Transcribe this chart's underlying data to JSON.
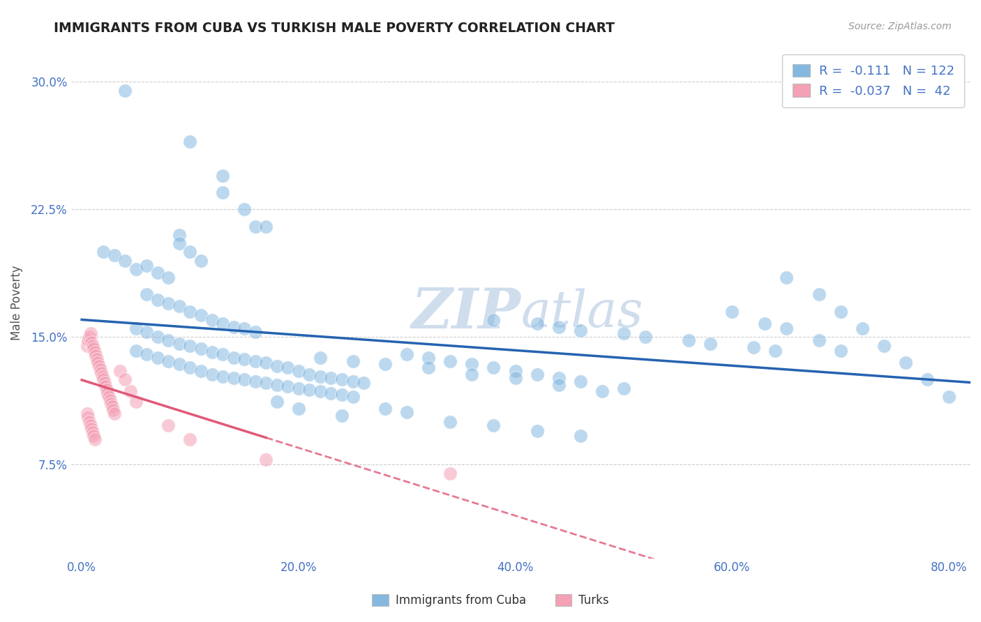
{
  "title": "IMMIGRANTS FROM CUBA VS TURKISH MALE POVERTY CORRELATION CHART",
  "source": "Source: ZipAtlas.com",
  "ylabel": "Male Poverty",
  "x_tick_labels": [
    "0.0%",
    "20.0%",
    "40.0%",
    "60.0%",
    "80.0%"
  ],
  "x_tick_values": [
    0.0,
    0.2,
    0.4,
    0.6,
    0.8
  ],
  "y_tick_labels": [
    "7.5%",
    "15.0%",
    "22.5%",
    "30.0%"
  ],
  "y_tick_values": [
    0.075,
    0.15,
    0.225,
    0.3
  ],
  "xlim": [
    -0.01,
    0.82
  ],
  "ylim": [
    0.02,
    0.32
  ],
  "legend_labels": [
    "Immigrants from Cuba",
    "Turks"
  ],
  "blue_R": "-0.111",
  "blue_N": "122",
  "pink_R": "-0.037",
  "pink_N": "42",
  "blue_dot_color": "#85b8e0",
  "pink_dot_color": "#f4a0b5",
  "blue_line_color": "#2563b0",
  "pink_line_color": "#e05878",
  "watermark_color": "#cfdded",
  "background_color": "#ffffff",
  "title_color": "#222222",
  "axis_color": "#4472c4",
  "blue_scatter_x": [
    0.04,
    0.1,
    0.13,
    0.13,
    0.15,
    0.16,
    0.17,
    0.02,
    0.03,
    0.04,
    0.05,
    0.06,
    0.07,
    0.08,
    0.09,
    0.09,
    0.1,
    0.11,
    0.06,
    0.07,
    0.08,
    0.09,
    0.1,
    0.11,
    0.12,
    0.13,
    0.14,
    0.15,
    0.16,
    0.05,
    0.06,
    0.07,
    0.08,
    0.09,
    0.1,
    0.11,
    0.12,
    0.13,
    0.14,
    0.15,
    0.16,
    0.17,
    0.18,
    0.19,
    0.2,
    0.21,
    0.22,
    0.23,
    0.24,
    0.25,
    0.26,
    0.05,
    0.06,
    0.07,
    0.08,
    0.09,
    0.1,
    0.11,
    0.12,
    0.13,
    0.14,
    0.15,
    0.16,
    0.17,
    0.18,
    0.19,
    0.2,
    0.21,
    0.22,
    0.23,
    0.24,
    0.25,
    0.3,
    0.32,
    0.34,
    0.36,
    0.38,
    0.4,
    0.42,
    0.44,
    0.46,
    0.5,
    0.38,
    0.42,
    0.44,
    0.46,
    0.5,
    0.52,
    0.56,
    0.58,
    0.62,
    0.64,
    0.65,
    0.68,
    0.7,
    0.72,
    0.74,
    0.76,
    0.78,
    0.8,
    0.6,
    0.63,
    0.65,
    0.68,
    0.7,
    0.28,
    0.3,
    0.34,
    0.38,
    0.42,
    0.46,
    0.22,
    0.25,
    0.28,
    0.32,
    0.36,
    0.4,
    0.44,
    0.48,
    0.18,
    0.2,
    0.24
  ],
  "blue_scatter_y": [
    0.295,
    0.265,
    0.245,
    0.235,
    0.225,
    0.215,
    0.215,
    0.2,
    0.198,
    0.195,
    0.19,
    0.192,
    0.188,
    0.185,
    0.21,
    0.205,
    0.2,
    0.195,
    0.175,
    0.172,
    0.17,
    0.168,
    0.165,
    0.163,
    0.16,
    0.158,
    0.156,
    0.155,
    0.153,
    0.155,
    0.153,
    0.15,
    0.148,
    0.146,
    0.145,
    0.143,
    0.141,
    0.14,
    0.138,
    0.137,
    0.136,
    0.135,
    0.133,
    0.132,
    0.13,
    0.128,
    0.127,
    0.126,
    0.125,
    0.124,
    0.123,
    0.142,
    0.14,
    0.138,
    0.136,
    0.134,
    0.132,
    0.13,
    0.128,
    0.127,
    0.126,
    0.125,
    0.124,
    0.123,
    0.122,
    0.121,
    0.12,
    0.119,
    0.118,
    0.117,
    0.116,
    0.115,
    0.14,
    0.138,
    0.136,
    0.134,
    0.132,
    0.13,
    0.128,
    0.126,
    0.124,
    0.12,
    0.16,
    0.158,
    0.156,
    0.154,
    0.152,
    0.15,
    0.148,
    0.146,
    0.144,
    0.142,
    0.185,
    0.175,
    0.165,
    0.155,
    0.145,
    0.135,
    0.125,
    0.115,
    0.165,
    0.158,
    0.155,
    0.148,
    0.142,
    0.108,
    0.106,
    0.1,
    0.098,
    0.095,
    0.092,
    0.138,
    0.136,
    0.134,
    0.132,
    0.128,
    0.126,
    0.122,
    0.118,
    0.112,
    0.108,
    0.104
  ],
  "pink_scatter_x": [
    0.005,
    0.006,
    0.007,
    0.008,
    0.009,
    0.01,
    0.011,
    0.012,
    0.013,
    0.014,
    0.015,
    0.016,
    0.017,
    0.018,
    0.019,
    0.02,
    0.021,
    0.022,
    0.023,
    0.024,
    0.025,
    0.026,
    0.027,
    0.028,
    0.029,
    0.03,
    0.005,
    0.006,
    0.007,
    0.008,
    0.009,
    0.01,
    0.011,
    0.012,
    0.035,
    0.04,
    0.045,
    0.05,
    0.08,
    0.1,
    0.17,
    0.34
  ],
  "pink_scatter_y": [
    0.145,
    0.148,
    0.15,
    0.152,
    0.147,
    0.145,
    0.143,
    0.141,
    0.139,
    0.137,
    0.135,
    0.133,
    0.131,
    0.129,
    0.127,
    0.125,
    0.123,
    0.121,
    0.119,
    0.117,
    0.115,
    0.113,
    0.111,
    0.109,
    0.107,
    0.105,
    0.105,
    0.103,
    0.1,
    0.098,
    0.096,
    0.094,
    0.092,
    0.09,
    0.13,
    0.125,
    0.118,
    0.112,
    0.098,
    0.09,
    0.078,
    0.07
  ]
}
